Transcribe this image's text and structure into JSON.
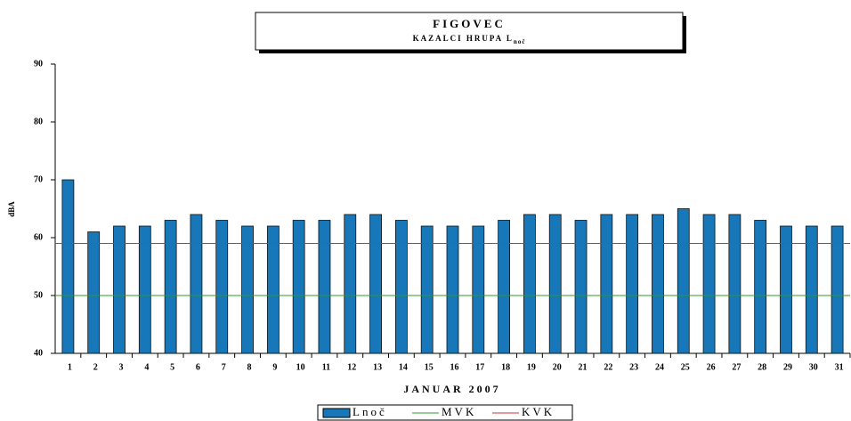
{
  "chart_data": {
    "type": "bar",
    "title": "FIGOVEC",
    "subtitle": {
      "text": "KAZALCI HRUPA L",
      "subscript": "noč"
    },
    "xlabel": "JANUAR 2007",
    "ylabel": "dBA",
    "categories": [
      "1",
      "2",
      "3",
      "4",
      "5",
      "6",
      "7",
      "8",
      "9",
      "10",
      "11",
      "12",
      "13",
      "14",
      "15",
      "16",
      "17",
      "18",
      "19",
      "20",
      "21",
      "22",
      "23",
      "24",
      "25",
      "26",
      "27",
      "28",
      "29",
      "30",
      "31"
    ],
    "series": [
      {
        "name": "Lnoč",
        "color": "#1777b8",
        "values": [
          70,
          61,
          62,
          62,
          63,
          64,
          63,
          62,
          62,
          63,
          63,
          64,
          64,
          63,
          62,
          62,
          62,
          63,
          64,
          64,
          63,
          64,
          64,
          64,
          65,
          64,
          64,
          63,
          62,
          62,
          62
        ]
      }
    ],
    "reference_lines": [
      {
        "name": "MVK",
        "color": "#2e9a2e",
        "value": 50
      },
      {
        "name": "KVK",
        "color": "#d03030",
        "value": 59
      }
    ],
    "ylim": [
      40,
      90
    ],
    "yticks": [
      40,
      50,
      60,
      70,
      80,
      90
    ],
    "grid": false
  }
}
